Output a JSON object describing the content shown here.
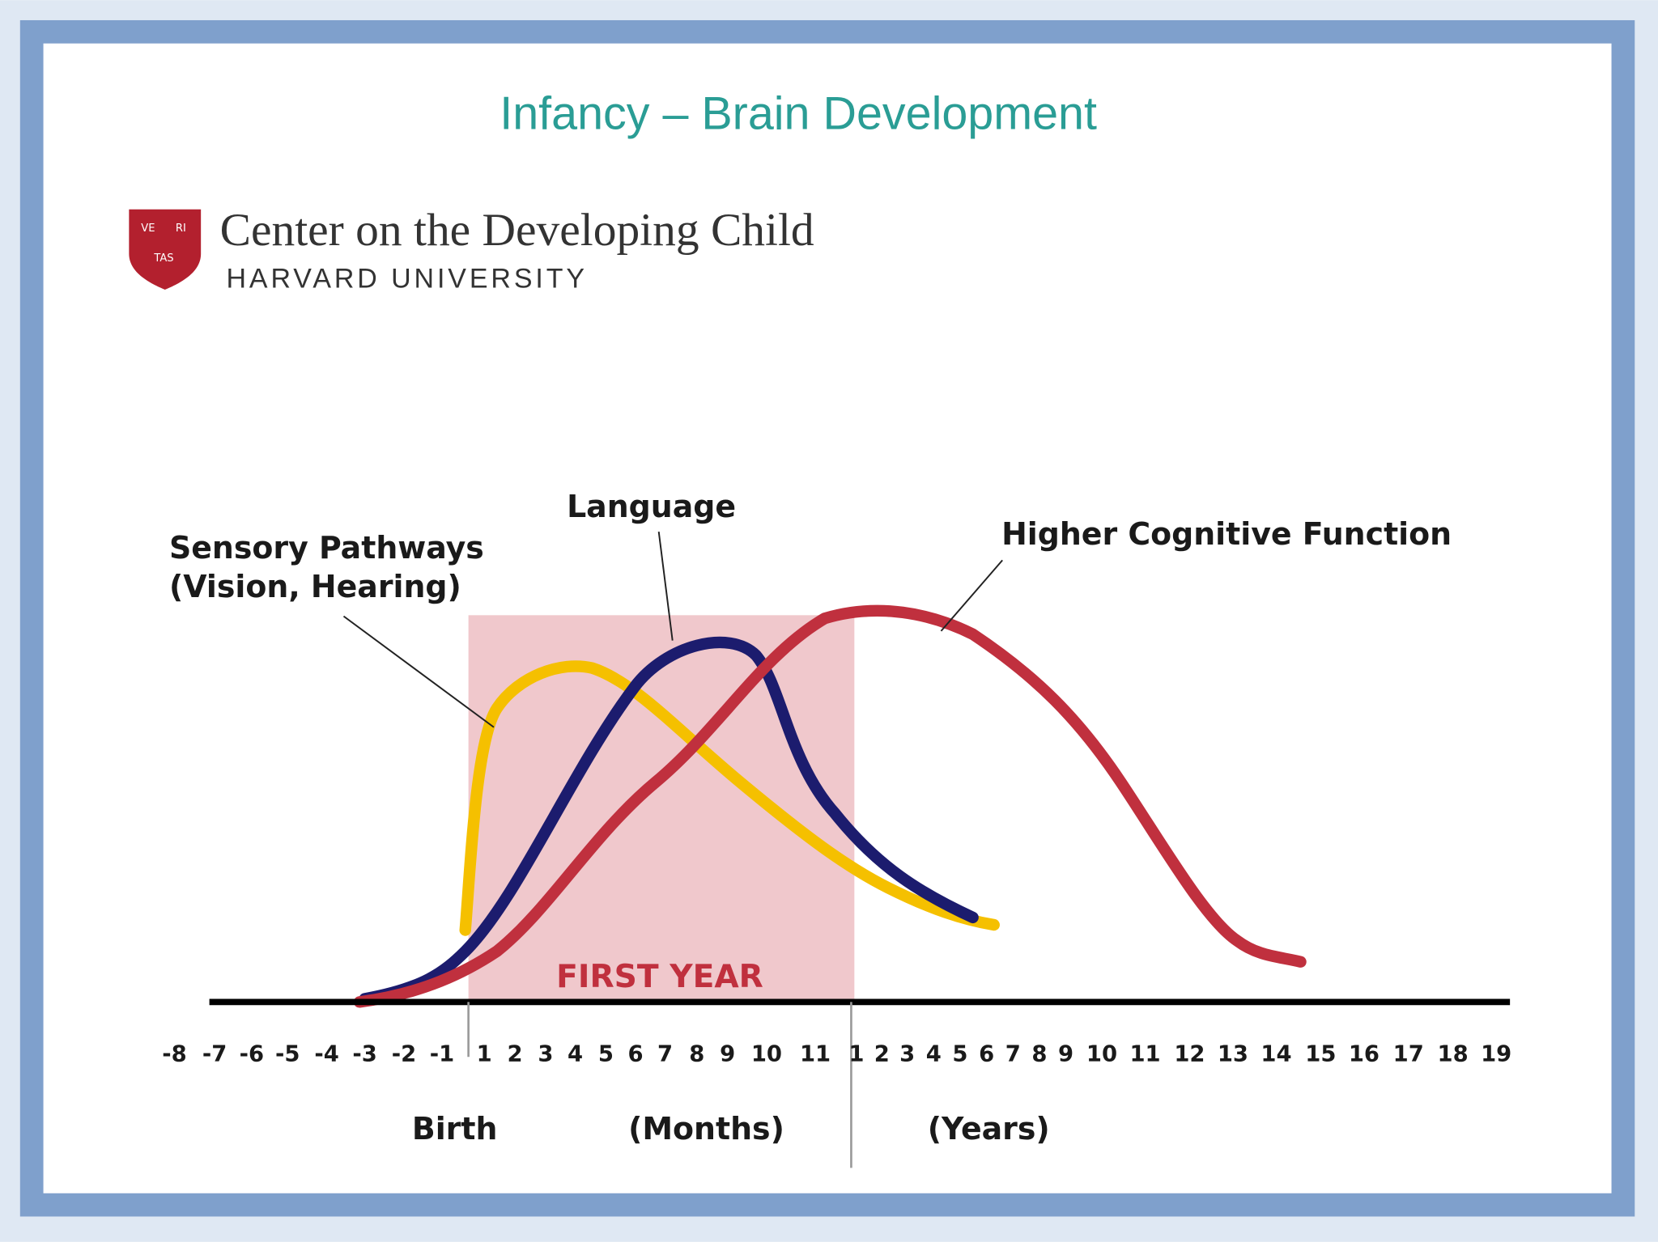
{
  "title": "Infancy – Brain Development",
  "logo": {
    "name": "Center on the Developing Child",
    "subtitle": "HARVARD UNIVERSITY",
    "shield": [
      "VE",
      "RI",
      "TAS"
    ]
  },
  "curve_labels": {
    "sensory": [
      "Sensory Pathways",
      "(Vision, Hearing)"
    ],
    "language": "Language",
    "cognitive": "Higher Cognitive Function"
  },
  "region_label": "FIRST YEAR",
  "axis_labels": [
    "-8",
    "-7",
    "-6",
    "-5",
    "-4",
    "-3",
    "-2",
    "-1",
    "1",
    "2",
    "3",
    "4",
    "5",
    "6",
    "7",
    "8",
    "9",
    "10",
    "11",
    "1",
    "2",
    "3",
    "4",
    "5",
    "6",
    "7",
    "8",
    "9",
    "10",
    "11",
    "12",
    "13",
    "14",
    "15",
    "16",
    "17",
    "18",
    "19"
  ],
  "axis_captions": {
    "birth": "Birth",
    "months": "(Months)",
    "years": "(Years)"
  }
}
